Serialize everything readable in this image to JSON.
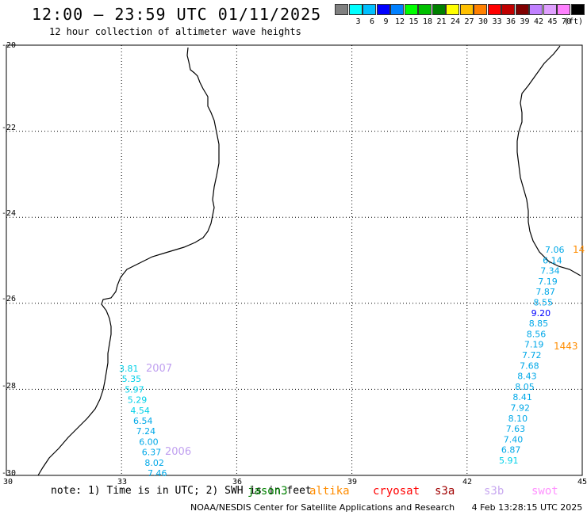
{
  "header": {
    "title": "12:00 – 23:59 UTC 01/11/2025",
    "subtitle": "12 hour collection of altimeter wave heights"
  },
  "color_scale": {
    "unit": "(ft)",
    "swatches": [
      {
        "color": "#808080",
        "label": ""
      },
      {
        "color": "#00ffff",
        "label": "3"
      },
      {
        "color": "#00c0ff",
        "label": "6"
      },
      {
        "color": "#0000ff",
        "label": "9"
      },
      {
        "color": "#0080ff",
        "label": "12"
      },
      {
        "color": "#00ff00",
        "label": "15"
      },
      {
        "color": "#00c000",
        "label": "18"
      },
      {
        "color": "#008000",
        "label": "21"
      },
      {
        "color": "#ffff00",
        "label": "24"
      },
      {
        "color": "#ffc000",
        "label": "27"
      },
      {
        "color": "#ff8000",
        "label": "30"
      },
      {
        "color": "#ff0000",
        "label": "33"
      },
      {
        "color": "#c00000",
        "label": "36"
      },
      {
        "color": "#800000",
        "label": "39"
      },
      {
        "color": "#c080ff",
        "label": "42"
      },
      {
        "color": "#e0a0ff",
        "label": "45"
      },
      {
        "color": "#ff80ff",
        "label": "70"
      },
      {
        "color": "#000000",
        "label": ""
      }
    ]
  },
  "map": {
    "lat_labels": [
      "-20",
      "-22",
      "-24",
      "-26",
      "-28",
      "-30"
    ],
    "lon_labels": [
      "30",
      "33",
      "36",
      "39",
      "42",
      "45"
    ],
    "lat_range": [
      -30,
      -20
    ],
    "lon_range": [
      30,
      45
    ]
  },
  "tracks": {
    "west_values": [
      "3.81",
      "5.35",
      "5.97",
      "5.29",
      "4.54",
      "6.54",
      "7.24",
      "6.00",
      "6.37",
      "8.02",
      "7.46"
    ],
    "west_pass_labels": [
      "2007",
      "2006"
    ],
    "east_values": [
      "7.06",
      "6.14",
      "7.34",
      "7.19",
      "7.87",
      "8.55",
      "9.20",
      "8.85",
      "8.56",
      "7.19",
      "7.72",
      "7.68",
      "8.43",
      "8.05",
      "8.41",
      "7.92",
      "8.10",
      "7.63",
      "7.40",
      "6.87",
      "5.91"
    ],
    "east_pass_labels": [
      "14",
      "1443"
    ]
  },
  "notes": {
    "text": "note: 1) Time is in UTC; 2) SWH is in feet",
    "missions": [
      {
        "name": "jason3",
        "color": "#008000"
      },
      {
        "name": "altika",
        "color": "#ff8c00"
      },
      {
        "name": "cryosat",
        "color": "#ff0000"
      },
      {
        "name": "s3a",
        "color": "#a00000"
      },
      {
        "name": "s3b",
        "color": "#c8a8f0"
      },
      {
        "name": "swot",
        "color": "#ff90ff"
      }
    ]
  },
  "footer": {
    "credit": "NOAA/NESDIS Center for Satellite Applications and Research",
    "timestamp": "4 Feb 13:28:15 UTC 2025"
  }
}
